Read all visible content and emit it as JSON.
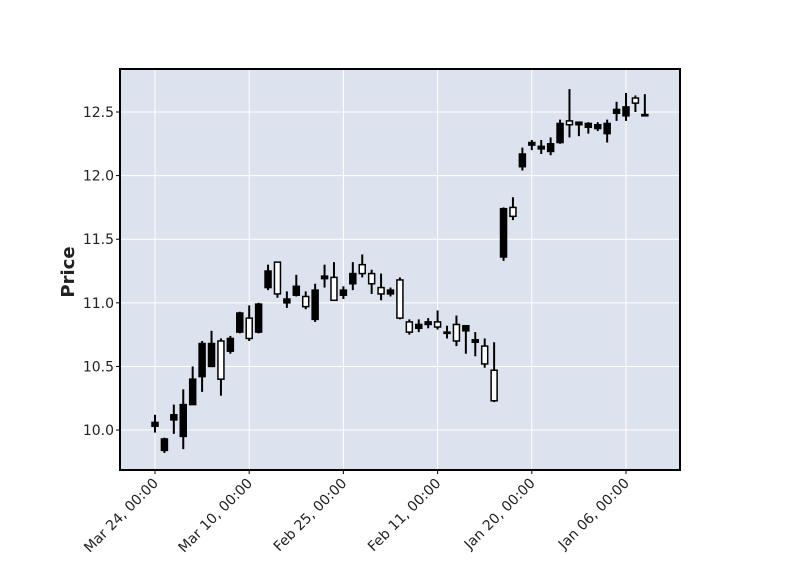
{
  "chart_data": {
    "type": "candlestick",
    "ylabel": "Price",
    "categories": [
      "Mar 24, 00:00",
      null,
      null,
      null,
      null,
      null,
      null,
      null,
      null,
      null,
      "Mar 10, 00:00",
      null,
      null,
      null,
      null,
      null,
      null,
      null,
      null,
      null,
      "Feb 25, 00:00",
      null,
      null,
      null,
      null,
      null,
      null,
      null,
      null,
      null,
      "Feb 11, 00:00",
      null,
      null,
      null,
      null,
      null,
      null,
      null,
      null,
      null,
      "Jan 20, 00:00",
      null,
      null,
      null,
      null,
      null,
      null,
      null,
      null,
      null,
      "Jan 06, 00:00",
      null,
      null
    ],
    "open": [
      10.06,
      9.93,
      10.12,
      10.2,
      10.4,
      10.68,
      10.68,
      10.4,
      10.72,
      10.92,
      10.72,
      10.99,
      11.25,
      11.07,
      11.03,
      11.13,
      10.97,
      11.1,
      11.21,
      11.02,
      11.1,
      11.23,
      11.23,
      11.15,
      11.07,
      11.1,
      10.88,
      10.77,
      10.83,
      10.85,
      10.81,
      10.77,
      10.7,
      10.82,
      10.71,
      10.52,
      10.23,
      11.74,
      11.68,
      12.17,
      12.26,
      12.23,
      12.25,
      12.41,
      12.4,
      12.42,
      12.41,
      12.4,
      12.41,
      12.52,
      12.54,
      12.57,
      12.48
    ],
    "high": [
      10.12,
      9.94,
      10.2,
      10.32,
      10.5,
      10.7,
      10.78,
      10.72,
      10.74,
      10.93,
      10.98,
      11.0,
      11.3,
      11.32,
      11.09,
      11.22,
      11.09,
      11.15,
      11.3,
      11.32,
      11.13,
      11.32,
      11.38,
      11.26,
      11.23,
      11.12,
      11.2,
      10.87,
      10.87,
      10.88,
      10.94,
      10.82,
      10.9,
      10.82,
      10.77,
      10.72,
      10.69,
      11.75,
      11.83,
      12.22,
      12.28,
      12.28,
      12.3,
      12.44,
      12.68,
      12.42,
      12.42,
      12.42,
      12.44,
      12.58,
      12.65,
      12.63,
      12.64
    ],
    "low": [
      9.98,
      9.82,
      9.97,
      9.85,
      10.2,
      10.3,
      10.5,
      10.27,
      10.6,
      10.76,
      10.7,
      10.76,
      11.1,
      11.04,
      10.96,
      11.05,
      10.95,
      10.85,
      11.12,
      11.02,
      11.03,
      11.1,
      11.2,
      11.07,
      11.02,
      11.05,
      10.87,
      10.75,
      10.77,
      10.8,
      10.79,
      10.72,
      10.66,
      10.6,
      10.58,
      10.49,
      10.22,
      11.33,
      11.65,
      12.04,
      12.2,
      12.17,
      12.16,
      12.25,
      12.3,
      12.31,
      12.33,
      12.35,
      12.26,
      12.43,
      12.43,
      12.5,
      12.47
    ],
    "close": [
      10.03,
      9.84,
      10.08,
      9.95,
      10.2,
      10.42,
      10.5,
      10.7,
      10.62,
      10.77,
      10.88,
      10.77,
      11.12,
      11.32,
      11.0,
      11.06,
      11.05,
      10.87,
      11.19,
      11.2,
      11.06,
      11.15,
      11.3,
      11.23,
      11.12,
      11.07,
      11.18,
      10.85,
      10.8,
      10.83,
      10.85,
      10.76,
      10.83,
      10.78,
      10.69,
      10.66,
      10.47,
      11.36,
      11.75,
      12.07,
      12.24,
      12.21,
      12.19,
      12.26,
      12.43,
      12.4,
      12.38,
      12.37,
      12.33,
      12.49,
      12.47,
      12.61,
      12.47
    ],
    "color": "#000000",
    "ylim": [
      9.686,
      12.838
    ],
    "yticks": [
      {
        "value": 10,
        "label": "10.0"
      },
      10.5,
      {
        "value": 11,
        "label": "11.0"
      },
      11.5,
      {
        "value": 12,
        "label": "12.0"
      },
      12.5
    ],
    "grid": true
  }
}
